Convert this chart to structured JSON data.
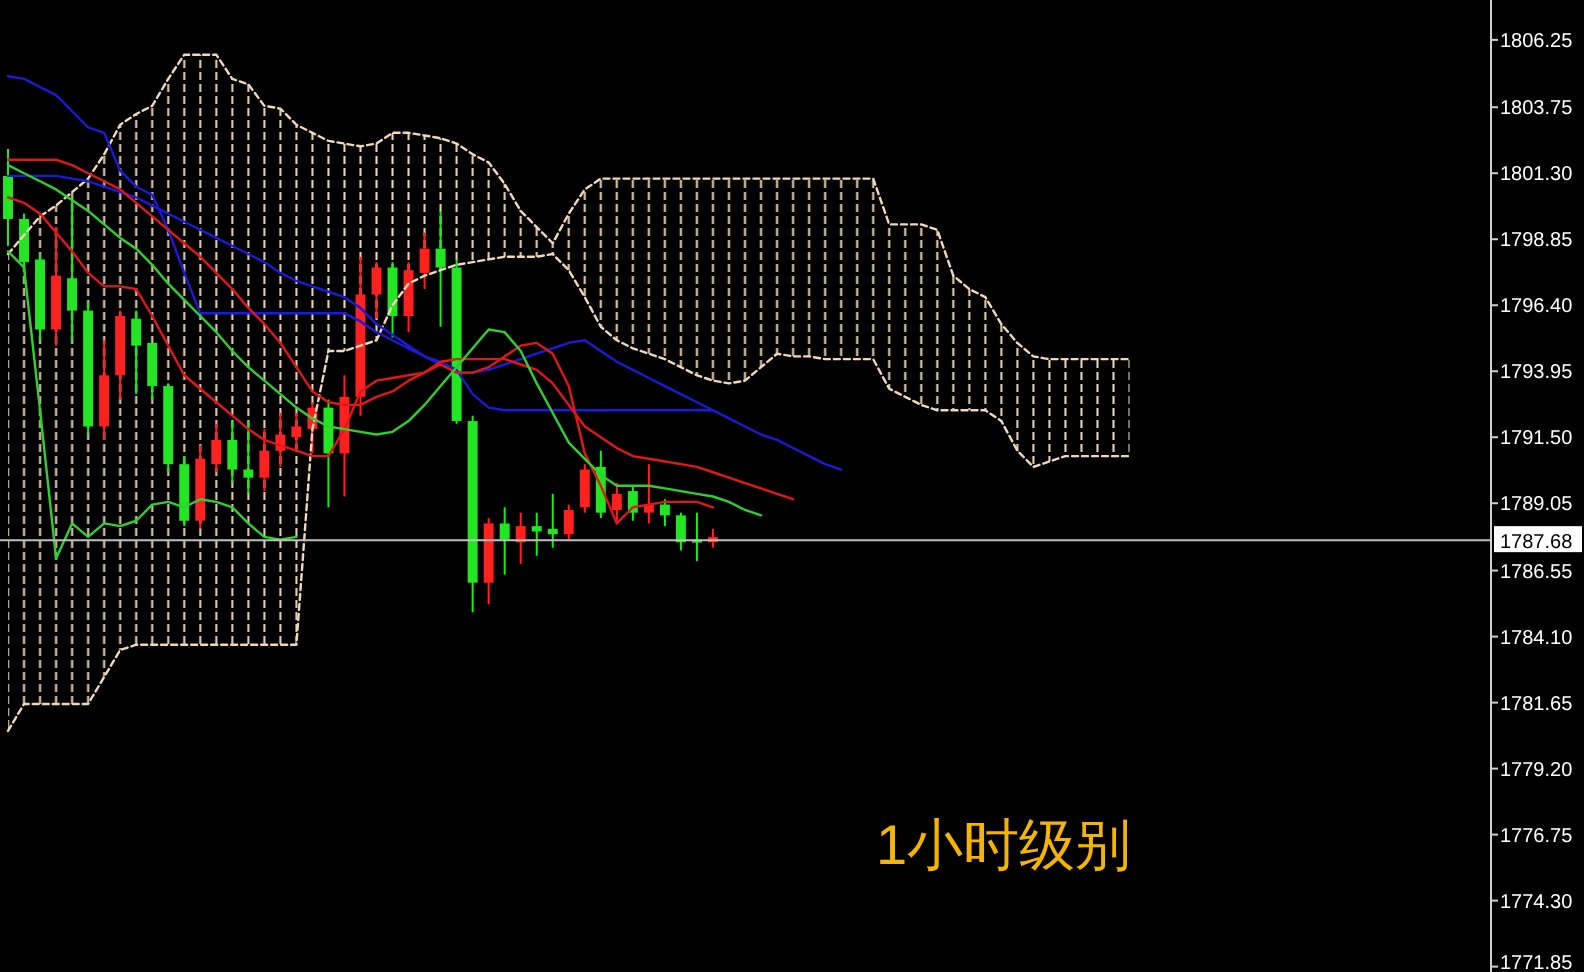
{
  "chart_data": {
    "type": "candlestick",
    "categories": [
      null,
      null,
      null,
      null,
      null,
      null,
      null,
      null,
      null,
      null,
      null,
      null,
      null,
      null,
      null,
      null,
      null,
      null,
      null,
      null,
      null,
      null,
      null,
      null,
      null,
      null,
      null,
      null,
      null,
      null,
      null,
      null,
      null,
      null,
      null,
      null,
      null,
      null,
      null,
      null,
      null,
      null,
      null,
      null,
      null,
      null,
      null,
      null,
      null,
      null,
      null,
      null,
      null,
      null,
      null,
      null,
      null,
      null,
      null,
      null,
      null,
      null,
      null,
      null,
      null,
      null,
      null,
      null,
      null,
      null,
      null,
      null,
      null,
      null,
      null,
      null,
      null,
      null,
      null,
      null,
      null,
      null,
      null,
      null,
      null,
      null,
      null,
      null,
      null,
      null,
      null,
      null,
      null
    ],
    "ohlc": [
      [
        1801.2,
        1802.2,
        1798.6,
        1799.6
      ],
      [
        1799.6,
        1799.8,
        1797.7,
        1798.0
      ],
      [
        1798.1,
        1798.3,
        1795.1,
        1795.5
      ],
      [
        1795.5,
        1799.3,
        1794.9,
        1797.5
      ],
      [
        1797.4,
        1800.3,
        1795.1,
        1796.2
      ],
      [
        1796.2,
        1796.5,
        1791.6,
        1791.9
      ],
      [
        1791.9,
        1795.1,
        1791.4,
        1793.8
      ],
      [
        1793.8,
        1796.2,
        1792.9,
        1796.0
      ],
      [
        1795.9,
        1796.2,
        1793.1,
        1794.9
      ],
      [
        1795.0,
        1795.0,
        1792.9,
        1793.4
      ],
      [
        1793.4,
        1793.5,
        1790.2,
        1790.5
      ],
      [
        1790.5,
        1790.8,
        1788.2,
        1788.4
      ],
      [
        1788.4,
        1791.2,
        1788.1,
        1790.7
      ],
      [
        1790.5,
        1792.0,
        1790.2,
        1791.4
      ],
      [
        1791.4,
        1792.1,
        1789.8,
        1790.3
      ],
      [
        1790.3,
        1792.1,
        1789.4,
        1790.0
      ],
      [
        1790.0,
        1791.8,
        1789.5,
        1791.0
      ],
      [
        1791.0,
        1792.4,
        1790.4,
        1791.6
      ],
      [
        1791.5,
        1792.4,
        1791.0,
        1791.9
      ],
      [
        1791.8,
        1792.8,
        1790.9,
        1792.6
      ],
      [
        1792.6,
        1792.9,
        1788.9,
        1790.9
      ],
      [
        1790.9,
        1793.8,
        1789.3,
        1793.0
      ],
      [
        1793.0,
        1798.2,
        1792.3,
        1796.8
      ],
      [
        1796.8,
        1798.0,
        1795.9,
        1797.8
      ],
      [
        1797.8,
        1798.0,
        1795.2,
        1796.0
      ],
      [
        1796.0,
        1798.0,
        1795.4,
        1797.7
      ],
      [
        1797.6,
        1799.1,
        1797.0,
        1798.5
      ],
      [
        1798.5,
        1799.9,
        1795.6,
        1797.8
      ],
      [
        1797.8,
        1798.1,
        1792.0,
        1792.1
      ],
      [
        1792.1,
        1792.3,
        1785.0,
        1786.1
      ],
      [
        1786.1,
        1788.5,
        1785.3,
        1788.3
      ],
      [
        1788.3,
        1788.9,
        1786.4,
        1787.7
      ],
      [
        1787.6,
        1788.7,
        1786.8,
        1788.2
      ],
      [
        1788.2,
        1788.7,
        1787.1,
        1788.0
      ],
      [
        1788.1,
        1789.4,
        1787.4,
        1787.9
      ],
      [
        1787.9,
        1789.0,
        1787.7,
        1788.8
      ],
      [
        1788.9,
        1790.5,
        1788.7,
        1790.3
      ],
      [
        1790.4,
        1791.0,
        1788.5,
        1788.7
      ],
      [
        1788.8,
        1789.8,
        1788.3,
        1789.4
      ],
      [
        1789.5,
        1789.7,
        1788.4,
        1788.7
      ],
      [
        1788.7,
        1790.5,
        1788.3,
        1789.0
      ],
      [
        1789.0,
        1789.2,
        1788.2,
        1788.6
      ],
      [
        1788.6,
        1788.7,
        1787.3,
        1787.6
      ],
      [
        1787.7,
        1788.7,
        1786.9,
        1787.6
      ],
      [
        1787.6,
        1788.1,
        1787.4,
        1787.8
      ],
      null,
      null,
      null,
      null,
      null,
      null,
      null,
      null,
      null,
      null,
      null,
      null,
      null,
      null,
      null,
      null,
      null,
      null,
      null,
      null,
      null,
      null,
      null,
      null,
      null,
      null,
      null,
      null,
      null,
      null,
      null,
      null,
      null,
      null,
      null,
      null,
      null,
      null,
      null,
      null,
      null,
      null,
      null,
      null,
      null,
      null,
      null,
      null
    ],
    "colors": [
      "#22e622",
      "#22e622",
      "#22e622",
      "#ff2020",
      "#22e622",
      "#22e622",
      "#ff2020",
      "#ff2020",
      "#22e622",
      "#22e622",
      "#22e622",
      "#22e622",
      "#ff2020",
      "#ff2020",
      "#22e622",
      "#22e622",
      "#ff2020",
      "#ff2020",
      "#ff2020",
      "#ff2020",
      "#22e622",
      "#ff2020",
      "#ff2020",
      "#ff2020",
      "#22e622",
      "#ff2020",
      "#ff2020",
      "#22e622",
      "#22e622",
      "#22e622",
      "#ff2020",
      "#22e622",
      "#ff2020",
      "#22e622",
      "#22e622",
      "#ff2020",
      "#ff2020",
      "#22e622",
      "#ff2020",
      "#22e622",
      "#ff2020",
      "#22e622",
      "#22e622",
      "#22e622",
      "#ff2020",
      null,
      null,
      null,
      null,
      null,
      null,
      null,
      null,
      null,
      null,
      null,
      null,
      null,
      null,
      null,
      null,
      null,
      null,
      null,
      null,
      null,
      null,
      null,
      null,
      null,
      null,
      null,
      null,
      null,
      null,
      null,
      null,
      null,
      null,
      null,
      null,
      null,
      null,
      null,
      null,
      null,
      null,
      null,
      null,
      null,
      null,
      null,
      null
    ],
    "series": [
      {
        "type": "line",
        "color": "#f0d8b8",
        "line_style": "dashed",
        "values": [
          1798.3,
          1799.0,
          1799.7,
          1800.1,
          1800.6,
          1801.1,
          1802.0,
          1803.1,
          1803.5,
          1803.8,
          1804.8,
          1805.7,
          1805.7,
          1805.7,
          1804.8,
          1804.6,
          1803.8,
          1803.7,
          1803.1,
          1802.8,
          1802.5,
          1802.4,
          1802.3,
          1802.4,
          1802.8,
          1802.8,
          1802.7,
          1802.6,
          1802.4,
          1802.0,
          1801.7,
          1800.9,
          1799.9,
          1799.3,
          1798.7,
          1799.8,
          1800.7,
          1801.1,
          1801.1,
          1801.1,
          1801.1,
          1801.1,
          1801.1,
          1801.1,
          1801.1,
          1801.1,
          1801.1,
          1801.1,
          1801.1,
          1801.1,
          1801.1,
          1801.1,
          1801.1,
          1801.1,
          1801.1,
          1799.4,
          1799.4,
          1799.4,
          1799.2,
          1797.5,
          1797.0,
          1796.7,
          1795.7,
          1795.0,
          1794.5,
          1794.4,
          1794.4,
          1794.4,
          1794.4,
          1794.4,
          1794.4,
          null,
          null,
          null,
          null,
          null,
          null,
          null,
          null,
          null,
          null,
          null,
          null,
          null,
          null,
          null,
          null,
          null,
          null,
          null,
          null,
          null,
          null
        ]
      },
      {
        "type": "line",
        "color": "#f0d8b8",
        "line_style": "dashed",
        "values": [
          1780.6,
          1781.6,
          1781.6,
          1781.6,
          1781.6,
          1781.6,
          1782.6,
          1783.6,
          1783.8,
          1783.8,
          1783.8,
          1783.8,
          1783.8,
          1783.8,
          1783.8,
          1783.8,
          1783.8,
          1783.8,
          1783.8,
          1791.8,
          1794.7,
          1794.7,
          1794.9,
          1795.1,
          1796.4,
          1797.2,
          1797.5,
          1797.7,
          1797.9,
          1798.0,
          1798.1,
          1798.2,
          1798.2,
          1798.2,
          1798.3,
          1797.7,
          1796.7,
          1795.6,
          1795.1,
          1794.8,
          1794.6,
          1794.4,
          1794.1,
          1793.8,
          1793.6,
          1793.5,
          1793.6,
          1794.1,
          1794.6,
          1794.5,
          1794.5,
          1794.4,
          1794.4,
          1794.4,
          1794.4,
          1793.3,
          1793.0,
          1792.7,
          1792.5,
          1792.5,
          1792.5,
          1792.5,
          1792.1,
          1791.0,
          1790.4,
          1790.6,
          1790.8,
          1790.8,
          1790.8,
          1790.8,
          1790.8,
          null,
          null,
          null,
          null,
          null,
          null,
          null,
          null,
          null,
          null,
          null,
          null,
          null,
          null,
          null,
          null,
          null,
          null,
          null,
          null,
          null,
          null
        ]
      },
      {
        "type": "line",
        "color": "#1a1ad8",
        "values": [
          1804.9,
          1804.8,
          1804.5,
          1804.2,
          1803.6,
          1803.0,
          1802.8,
          1801.4,
          1800.8,
          1800.5,
          1799.2,
          1797.6,
          1796.1,
          1796.1,
          1796.1,
          1796.1,
          1796.1,
          1796.1,
          1796.1,
          1796.1,
          1796.1,
          1796.1,
          1795.8,
          1795.4,
          1795.1,
          1794.8,
          1794.5,
          1794.3,
          1794.0,
          1793.1,
          1792.6,
          1792.5,
          1792.5,
          1792.5,
          1792.5,
          1792.5,
          1792.5,
          1792.5,
          1792.5,
          1792.5,
          1792.5,
          1792.5,
          1792.5,
          1792.5,
          1792.5,
          null,
          null,
          null,
          null,
          null,
          null,
          null,
          null,
          null,
          null,
          null,
          null,
          null,
          null,
          null,
          null,
          null,
          null,
          null,
          null,
          null,
          null,
          null,
          null,
          null,
          null,
          null,
          null,
          null,
          null,
          null,
          null,
          null,
          null,
          null,
          null,
          null,
          null,
          null,
          null,
          null,
          null,
          null,
          null,
          null,
          null,
          null,
          null
        ]
      },
      {
        "type": "line",
        "color": "#1a1ad8",
        "values": [
          1801.2,
          1801.2,
          1801.2,
          1801.2,
          1801.1,
          1801.0,
          1800.8,
          1800.6,
          1800.4,
          1800.1,
          1799.8,
          1799.5,
          1799.2,
          1798.9,
          1798.6,
          1798.3,
          1798.0,
          1797.6,
          1797.3,
          1797.1,
          1796.9,
          1796.7,
          1796.3,
          1795.7,
          1795.3,
          1794.9,
          1794.5,
          1794.2,
          1793.9,
          1793.9,
          1794.0,
          1794.2,
          1794.4,
          1794.6,
          1794.8,
          1795.0,
          1795.1,
          1794.7,
          1794.3,
          1794.0,
          1793.7,
          1793.4,
          1793.1,
          1792.8,
          1792.5,
          1792.2,
          1791.9,
          1791.6,
          1791.4,
          1791.1,
          1790.8,
          1790.5,
          1790.3,
          null,
          null,
          null,
          null,
          null,
          null,
          null,
          null,
          null,
          null,
          null,
          null,
          null,
          null,
          null,
          null,
          null,
          null,
          null,
          null,
          null,
          null,
          null,
          null,
          null,
          null,
          null,
          null,
          null,
          null,
          null,
          null,
          null,
          null,
          null,
          null,
          null,
          null,
          null,
          null
        ]
      },
      {
        "type": "line",
        "color": "#e01818",
        "values": [
          1801.8,
          1801.8,
          1801.8,
          1801.8,
          1801.6,
          1801.3,
          1801.0,
          1800.7,
          1800.2,
          1799.7,
          1799.2,
          1798.7,
          1798.2,
          1797.6,
          1797.0,
          1796.3,
          1795.7,
          1795.0,
          1794.1,
          1793.2,
          1792.8,
          1792.7,
          1792.7,
          1793.0,
          1793.2,
          1793.6,
          1793.9,
          1794.3,
          1794.4,
          1794.4,
          1794.4,
          1794.4,
          1794.2,
          1794.0,
          1793.5,
          1792.7,
          1791.9,
          1791.5,
          1791.1,
          1790.8,
          1790.7,
          1790.6,
          1790.5,
          1790.4,
          1790.2,
          1790.0,
          1789.8,
          1789.6,
          1789.4,
          1789.2,
          null,
          null,
          null,
          null,
          null,
          null,
          null,
          null,
          null,
          null,
          null,
          null,
          null,
          null,
          null,
          null,
          null,
          null,
          null,
          null,
          null,
          null,
          null,
          null,
          null,
          null,
          null,
          null,
          null,
          null,
          null,
          null,
          null,
          null,
          null,
          null,
          null,
          null,
          null,
          null,
          null,
          null,
          null
        ]
      },
      {
        "type": "line",
        "color": "#e01818",
        "values": [
          1800.4,
          1800.2,
          1799.8,
          1799.1,
          1798.4,
          1797.6,
          1797.1,
          1797.1,
          1797.0,
          1796.0,
          1794.9,
          1793.8,
          1793.3,
          1792.8,
          1792.3,
          1791.8,
          1791.4,
          1791.2,
          1791.0,
          1790.8,
          1790.8,
          1791.8,
          1793.2,
          1793.6,
          1793.7,
          1793.8,
          1793.9,
          1794.2,
          1793.9,
          1793.9,
          1794.1,
          1794.5,
          1794.9,
          1795.0,
          1794.6,
          1793.4,
          1790.9,
          1789.7,
          1788.3,
          1788.9,
          1789.0,
          1789.1,
          1789.1,
          1789.1,
          1788.9,
          null,
          null,
          null,
          null,
          null,
          null,
          null,
          null,
          null,
          null,
          null,
          null,
          null,
          null,
          null,
          null,
          null,
          null,
          null,
          null,
          null,
          null,
          null,
          null,
          null,
          null,
          null,
          null,
          null,
          null,
          null,
          null,
          null,
          null,
          null,
          null,
          null,
          null,
          null,
          null,
          null,
          null,
          null,
          null,
          null,
          null,
          null,
          null
        ]
      },
      {
        "type": "line",
        "color": "#30d030",
        "values": [
          1801.6,
          1801.3,
          1801.0,
          1800.7,
          1800.3,
          1799.9,
          1799.4,
          1798.9,
          1798.5,
          1797.9,
          1797.2,
          1796.6,
          1796.0,
          1795.4,
          1794.7,
          1794.1,
          1793.6,
          1793.1,
          1792.6,
          1792.2,
          1791.9,
          1791.8,
          1791.7,
          1791.6,
          1791.7,
          1792.1,
          1792.7,
          1793.4,
          1794.1,
          1794.8,
          1795.5,
          1795.4,
          1794.7,
          1793.5,
          1792.4,
          1791.3,
          1790.7,
          1790.1,
          1789.7,
          1789.7,
          1789.7,
          1789.6,
          1789.5,
          1789.4,
          1789.3,
          1789.1,
          1788.8,
          1788.6,
          null,
          null,
          null,
          null,
          null,
          null,
          null,
          null,
          null,
          null,
          null,
          null,
          null,
          null,
          null,
          null,
          null,
          null,
          null,
          null,
          null,
          null,
          null,
          null,
          null,
          null,
          null,
          null,
          null,
          null,
          null,
          null,
          null,
          null,
          null,
          null,
          null,
          null,
          null,
          null,
          null,
          null,
          null,
          null,
          null
        ]
      },
      {
        "type": "line",
        "color": "#30d030",
        "values": [
          1798.4,
          1797.8,
          1792.5,
          1787.0,
          1788.3,
          1787.8,
          1788.3,
          1788.2,
          1788.4,
          1789.0,
          1789.1,
          1788.9,
          1789.2,
          1789.1,
          1788.9,
          1788.3,
          1787.8,
          1787.7,
          1787.8,
          null,
          null,
          null,
          null,
          null,
          null,
          null,
          null,
          null,
          null,
          null,
          null,
          null,
          null,
          null,
          null,
          null,
          null,
          null,
          null,
          null,
          null,
          null,
          null,
          null,
          null,
          null,
          null,
          null,
          null,
          null,
          null,
          null,
          null,
          null,
          null,
          null,
          null,
          null,
          null,
          null,
          null,
          null,
          null,
          null,
          null,
          null,
          null,
          null,
          null,
          null,
          null,
          null,
          null,
          null,
          null,
          null,
          null,
          null,
          null,
          null,
          null,
          null,
          null,
          null,
          null,
          null,
          null,
          null,
          null,
          null,
          null,
          null,
          null
        ]
      }
    ],
    "ylim": [
      1771.65,
      1807.73
    ],
    "yticks": [
      {
        "value": 1806.25,
        "label": "1806.25"
      },
      {
        "value": 1803.75,
        "label": "1803.75"
      },
      {
        "value": 1801.3,
        "label": "1801.30"
      },
      {
        "value": 1798.85,
        "label": "1798.85"
      },
      {
        "value": 1796.4,
        "label": "1796.40"
      },
      {
        "value": 1793.95,
        "label": "1793.95"
      },
      {
        "value": 1791.5,
        "label": "1791.50"
      },
      {
        "value": 1789.05,
        "label": "1789.05"
      },
      {
        "value": 1786.55,
        "label": "1786.55"
      },
      {
        "value": 1784.1,
        "label": "1784.10"
      },
      {
        "value": 1781.65,
        "label": "1781.65"
      },
      {
        "value": 1779.2,
        "label": "1779.20"
      },
      {
        "value": 1776.75,
        "label": "1776.75"
      },
      {
        "value": 1774.3,
        "label": "1774.30"
      },
      {
        "value": 1771.85,
        "label": "1771.85"
      }
    ],
    "tick_labels": "y",
    "ref_lines": [
      {
        "axis": "y",
        "value": 1787.68,
        "label": "1787.68",
        "color": "#c0c0c0"
      }
    ],
    "annotations": [
      "1小时级别"
    ]
  }
}
